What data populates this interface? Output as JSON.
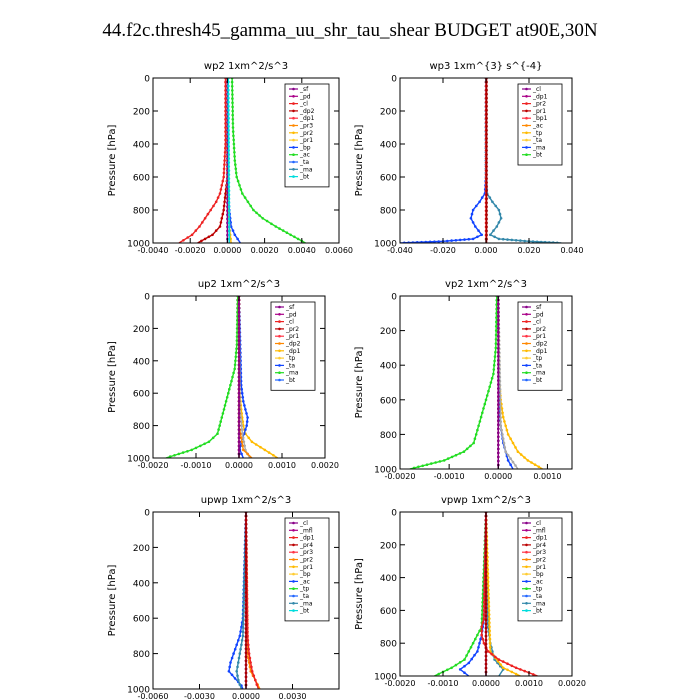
{
  "title": "44.f2c.thresh45_gamma_uu_shr_tau_shear  BUDGET at90E,30N",
  "chart_data": [
    {
      "type": "line",
      "id": "wp2",
      "title": "wp2   1xm^2/s^3",
      "xlabel": "",
      "ylabel": "Pressure  [hPa]",
      "xlim": [
        -0.004,
        0.006
      ],
      "ylim": [
        1000,
        0
      ],
      "y_inverted": true,
      "xticks": [
        -0.004,
        -0.002,
        0,
        0.002,
        0.004,
        0.006
      ],
      "xtick_labels": [
        "-0.0040",
        "-0.0020",
        "0.0000",
        "0.0020",
        "0.0040",
        "0.0060"
      ],
      "yticks": [
        0,
        200,
        400,
        600,
        800,
        1000
      ],
      "ytick_labels": [
        "0",
        "200",
        "400",
        "600",
        "800",
        "1000"
      ],
      "legend_position": "top-right",
      "grid": false,
      "legend": [
        "_sf",
        "_pd",
        "_cl",
        "_dp2",
        "_dp1",
        "_pr3",
        "_pr2",
        "_pr1",
        "_bp",
        "_ac",
        "_ta",
        "_ma",
        "_bt"
      ],
      "series": [
        {
          "name": "_pr1",
          "color": "#22dd22",
          "pressure": [
            0,
            300,
            500,
            600,
            700,
            800,
            850,
            900,
            950,
            1000
          ],
          "values": [
            0.00025,
            0.0003,
            0.0004,
            0.0005,
            0.0008,
            0.0014,
            0.0019,
            0.0026,
            0.0034,
            0.0042
          ]
        },
        {
          "name": "_dp1",
          "color": "#ee2222",
          "pressure": [
            0,
            400,
            600,
            700,
            750,
            800,
            850,
            900,
            950,
            1000
          ],
          "values": [
            -0.0001,
            -0.0001,
            -0.0002,
            -0.0004,
            -0.0006,
            -0.0009,
            -0.0012,
            -0.0015,
            -0.0019,
            -0.0026
          ]
        },
        {
          "name": "_dp2",
          "color": "#bb0000",
          "pressure": [
            0,
            600,
            700,
            800,
            900,
            950,
            1000
          ],
          "values": [
            0,
            0,
            -0.0001,
            -0.0002,
            -0.0004,
            -0.0008,
            -0.0016
          ]
        },
        {
          "name": "_bp",
          "color": "#1144ff",
          "pressure": [
            0,
            500,
            700,
            800,
            900,
            950,
            1000
          ],
          "values": [
            2e-05,
            3e-05,
            5e-05,
            0.0001,
            0.0002,
            0.0004,
            0.0007
          ]
        },
        {
          "name": "_pr2",
          "color": "#ffbb00",
          "pressure": [
            0,
            700,
            900,
            1000
          ],
          "values": [
            0,
            0,
            0.0001,
            0.0002
          ]
        },
        {
          "name": "_cl",
          "color": "#880088",
          "pressure": [
            0,
            1000
          ],
          "values": [
            0,
            0
          ]
        },
        {
          "name": "_bt",
          "color": "#00dddd",
          "pressure": [
            0,
            1000
          ],
          "values": [
            5e-05,
            0.0001
          ]
        }
      ]
    },
    {
      "type": "line",
      "id": "wp3",
      "title": "wp3   1xm^{3} s^{-4}",
      "xlabel": "",
      "ylabel": "Pressure  [hPa]",
      "xlim": [
        -0.04,
        0.04
      ],
      "ylim": [
        1000,
        0
      ],
      "y_inverted": true,
      "xticks": [
        -0.04,
        -0.02,
        0,
        0.02,
        0.04
      ],
      "xtick_labels": [
        "-0.040",
        "-0.020",
        "0.000",
        "0.020",
        "0.040"
      ],
      "yticks": [
        0,
        200,
        400,
        600,
        800,
        1000
      ],
      "ytick_labels": [
        "0",
        "200",
        "400",
        "600",
        "800",
        "1000"
      ],
      "legend_position": "top-right",
      "grid": false,
      "legend": [
        "_cl",
        "_dp1",
        "_pr2",
        "_pr1",
        "_bp1",
        "_ac",
        "_tp",
        "_ta",
        "_ma",
        "_bt"
      ],
      "series": [
        {
          "name": "_ta",
          "color": "#1144ff",
          "pressure": [
            0,
            600,
            700,
            750,
            800,
            850,
            900,
            950,
            975,
            990,
            1000
          ],
          "values": [
            0,
            0,
            -0.0005,
            -0.003,
            -0.006,
            -0.007,
            -0.005,
            -0.002,
            -0.006,
            -0.02,
            -0.04
          ]
        },
        {
          "name": "_ma",
          "color": "#3388aa",
          "pressure": [
            0,
            600,
            700,
            750,
            800,
            850,
            900,
            950,
            975,
            990,
            1000
          ],
          "values": [
            0,
            0,
            0.0005,
            0.003,
            0.006,
            0.007,
            0.005,
            0.002,
            0.006,
            0.02,
            0.035
          ]
        },
        {
          "name": "_dp1",
          "color": "#ee2222",
          "pressure": [
            0,
            1000
          ],
          "values": [
            0,
            0
          ]
        },
        {
          "name": "_cl",
          "color": "#aa0000",
          "pressure": [
            0,
            1000
          ],
          "values": [
            0.0003,
            0.0003
          ]
        }
      ]
    },
    {
      "type": "line",
      "id": "up2",
      "title": "up2   1xm^2/s^3",
      "xlabel": "",
      "ylabel": "Pressure  [hPa]",
      "xlim": [
        -0.002,
        0.002
      ],
      "ylim": [
        1000,
        0
      ],
      "y_inverted": true,
      "xticks": [
        -0.002,
        -0.001,
        0,
        0.001,
        0.002
      ],
      "xtick_labels": [
        "-0.0020",
        "-0.0010",
        "0.0000",
        "0.0010",
        "0.0020"
      ],
      "yticks": [
        0,
        200,
        400,
        600,
        800,
        1000
      ],
      "ytick_labels": [
        "0",
        "200",
        "400",
        "600",
        "800",
        "1000"
      ],
      "legend_position": "top-right",
      "grid": false,
      "legend": [
        "_sf",
        "_pd",
        "_cl",
        "_pr2",
        "_pr1",
        "_dp2",
        "_dp1",
        "_tp",
        "_ta",
        "_ma",
        "_bt"
      ],
      "series": [
        {
          "name": "_dp1",
          "color": "#22dd22",
          "pressure": [
            0,
            300,
            450,
            550,
            650,
            750,
            850,
            900,
            950,
            1000
          ],
          "values": [
            -3e-05,
            -5e-05,
            -0.0001,
            -0.0002,
            -0.0003,
            -0.0004,
            -0.0005,
            -0.0007,
            -0.0011,
            -0.0017
          ]
        },
        {
          "name": "_pr1",
          "color": "#ffbb00",
          "pressure": [
            0,
            600,
            700,
            800,
            850,
            900,
            950,
            1000
          ],
          "values": [
            0,
            2e-05,
            5e-05,
            0.0001,
            0.00015,
            0.0003,
            0.0006,
            0.0009
          ]
        },
        {
          "name": "_ta",
          "color": "#1144ff",
          "pressure": [
            0,
            550,
            650,
            700,
            750,
            800,
            850,
            900,
            950,
            1000
          ],
          "values": [
            0,
            5e-05,
            0.0001,
            0.00015,
            0.0002,
            0.00018,
            0.00012,
            5e-05,
            2e-05,
            0.0001
          ]
        },
        {
          "name": "_ma",
          "color": "#aaaaaa",
          "pressure": [
            0,
            700,
            850,
            950,
            1000
          ],
          "values": [
            0,
            2e-05,
            8e-05,
            0.00015,
            0.00025
          ]
        },
        {
          "name": "_pr2",
          "color": "#ff8800",
          "pressure": [
            0,
            800,
            950,
            1000
          ],
          "values": [
            0,
            0,
            0.0001,
            0.0003
          ]
        },
        {
          "name": "_cl",
          "color": "#aa0000",
          "pressure": [
            0,
            1000
          ],
          "values": [
            0,
            0
          ]
        },
        {
          "name": "_pd",
          "color": "#880088",
          "pressure": [
            0,
            1000
          ],
          "values": [
            0,
            0
          ]
        }
      ]
    },
    {
      "type": "line",
      "id": "vp2",
      "title": "vp2   1xm^2/s^3",
      "xlabel": "",
      "ylabel": "Pressure  [hPa]",
      "xlim": [
        -0.002,
        0.0015
      ],
      "ylim": [
        1000,
        0
      ],
      "y_inverted": true,
      "xticks": [
        -0.002,
        -0.001,
        0,
        0.001
      ],
      "xtick_labels": [
        "-0.0020",
        "-0.0010",
        "0.0000",
        "0.0010"
      ],
      "yticks": [
        0,
        200,
        400,
        600,
        800,
        1000
      ],
      "ytick_labels": [
        "0",
        "200",
        "400",
        "600",
        "800",
        "1000"
      ],
      "legend_position": "top-right",
      "grid": false,
      "legend": [
        "_sf",
        "_pd",
        "_cl",
        "_pr2",
        "_pr1",
        "_dp2",
        "_dp1",
        "_tp",
        "_ta",
        "_ma",
        "_bt"
      ],
      "series": [
        {
          "name": "_dp1",
          "color": "#22dd22",
          "pressure": [
            0,
            300,
            450,
            550,
            650,
            750,
            850,
            900,
            950,
            1000
          ],
          "values": [
            -3e-05,
            -5e-05,
            -0.0001,
            -0.0002,
            -0.0003,
            -0.0004,
            -0.0005,
            -0.0007,
            -0.0011,
            -0.0018
          ]
        },
        {
          "name": "_pr1",
          "color": "#ffbb00",
          "pressure": [
            0,
            500,
            600,
            700,
            800,
            850,
            900,
            950,
            1000
          ],
          "values": [
            0,
            2e-05,
            5e-05,
            0.0001,
            0.0002,
            0.0003,
            0.0004,
            0.0006,
            0.0009
          ]
        },
        {
          "name": "_ta",
          "color": "#1144ff",
          "pressure": [
            0,
            650,
            750,
            850,
            950,
            1000
          ],
          "values": [
            0,
            2e-05,
            5e-05,
            0.0001,
            0.0002,
            0.0003
          ]
        },
        {
          "name": "_ma",
          "color": "#aaaaaa",
          "pressure": [
            0,
            750,
            900,
            1000
          ],
          "values": [
            0,
            5e-05,
            0.00015,
            0.0004
          ]
        },
        {
          "name": "_cl",
          "color": "#aa0000",
          "pressure": [
            0,
            1000
          ],
          "values": [
            0,
            0
          ]
        },
        {
          "name": "_pd",
          "color": "#880088",
          "pressure": [
            0,
            1000
          ],
          "values": [
            0,
            0
          ]
        }
      ]
    },
    {
      "type": "line",
      "id": "upwp",
      "title": "upwp   1xm^2/s^3",
      "xlabel": "",
      "ylabel": "Pressure  [hPa]",
      "xlim": [
        -0.006,
        0.006
      ],
      "ylim": [
        1000,
        0
      ],
      "y_inverted": true,
      "xticks": [
        -0.006,
        -0.003,
        0,
        0.003
      ],
      "xtick_labels": [
        "-0.0060",
        "-0.0030",
        "0.0000",
        "0.0030"
      ],
      "yticks": [
        0,
        200,
        400,
        600,
        800,
        1000
      ],
      "ytick_labels": [
        "0",
        "200",
        "400",
        "600",
        "800",
        "1000"
      ],
      "legend_position": "top-right",
      "grid": false,
      "legend": [
        "_cl",
        "_mfl",
        "_dp1",
        "_pr4",
        "_pr3",
        "_pr2",
        "_pr1",
        "_bp",
        "_ac",
        "_tp",
        "_ta",
        "_ma",
        "_bt"
      ],
      "series": [
        {
          "name": "_ta",
          "color": "#1144ff",
          "pressure": [
            0,
            600,
            700,
            800,
            850,
            900,
            940,
            980,
            1000
          ],
          "values": [
            0,
            -0.0002,
            -0.0004,
            -0.0008,
            -0.001,
            -0.0011,
            -0.0007,
            -0.0003,
            -0.0002
          ]
        },
        {
          "name": "_ma",
          "color": "#3388aa",
          "pressure": [
            0,
            700,
            800,
            900,
            950,
            1000
          ],
          "values": [
            0,
            -0.0002,
            -0.0004,
            -0.0006,
            -0.0005,
            -0.0003
          ]
        },
        {
          "name": "_pr1",
          "color": "#ff8800",
          "pressure": [
            0,
            800,
            900,
            950,
            1000
          ],
          "values": [
            0,
            0.0001,
            0.0003,
            0.0006,
            0.0009
          ]
        },
        {
          "name": "_dp1",
          "color": "#ee2222",
          "pressure": [
            0,
            700,
            800,
            900,
            950,
            1000
          ],
          "values": [
            0,
            0.0001,
            0.0002,
            0.0004,
            0.0006,
            0.0008
          ]
        },
        {
          "name": "_mfl",
          "color": "#880088",
          "pressure": [
            0,
            1000
          ],
          "values": [
            0,
            0
          ]
        },
        {
          "name": "_cl",
          "color": "#aa0000",
          "pressure": [
            0,
            1000
          ],
          "values": [
            0,
            0
          ]
        }
      ]
    },
    {
      "type": "line",
      "id": "vpwp",
      "title": "vpwp   1xm^2/s^3",
      "xlabel": "",
      "ylabel": "Pressure  [hPa]",
      "xlim": [
        -0.002,
        0.002
      ],
      "ylim": [
        1000,
        0
      ],
      "y_inverted": true,
      "xticks": [
        -0.002,
        -0.001,
        0,
        0.001,
        0.002
      ],
      "xtick_labels": [
        "-0.0020",
        "-0.0010",
        "0.0000",
        "0.0010",
        "0.0020"
      ],
      "yticks": [
        0,
        200,
        400,
        600,
        800,
        1000
      ],
      "ytick_labels": [
        "0",
        "200",
        "400",
        "600",
        "800",
        "1000"
      ],
      "legend_position": "top-right",
      "grid": false,
      "legend": [
        "_cl",
        "_mfl",
        "_dp1",
        "_pr4",
        "_pr3",
        "_pr2",
        "_pr1",
        "_bp",
        "_ac",
        "_tp",
        "_ta",
        "_ma",
        "_bt"
      ],
      "series": [
        {
          "name": "_ac",
          "color": "#22dd22",
          "pressure": [
            0,
            700,
            800,
            900,
            950,
            1000
          ],
          "values": [
            0,
            -0.0001,
            -0.0003,
            -0.0005,
            -0.0008,
            -0.0012
          ]
        },
        {
          "name": "_tp",
          "color": "#1144ff",
          "pressure": [
            0,
            650,
            750,
            850,
            920,
            960,
            1000
          ],
          "values": [
            0,
            -5e-05,
            -0.0001,
            -0.0002,
            -0.0004,
            -0.0006,
            -0.0004
          ]
        },
        {
          "name": "_ta",
          "color": "#3388aa",
          "pressure": [
            0,
            700,
            800,
            900,
            960,
            1000
          ],
          "values": [
            0,
            5e-05,
            0.0001,
            0.0002,
            0.0004,
            0.0003
          ]
        },
        {
          "name": "_pr2",
          "color": "#ffbb00",
          "pressure": [
            0,
            850,
            950,
            1000
          ],
          "values": [
            0,
            0.0001,
            0.0004,
            0.0008
          ]
        },
        {
          "name": "_dp1",
          "color": "#ee2222",
          "pressure": [
            0,
            650,
            700,
            750,
            800,
            850,
            900,
            950,
            1000
          ],
          "values": [
            0,
            -5e-05,
            -0.0001,
            -0.0001,
            -5e-05,
            5e-05,
            0.0003,
            0.0007,
            0.0012
          ]
        },
        {
          "name": "_mfl",
          "color": "#880088",
          "pressure": [
            0,
            1000
          ],
          "values": [
            0,
            0
          ]
        },
        {
          "name": "_cl",
          "color": "#aa0000",
          "pressure": [
            0,
            1000
          ],
          "values": [
            0,
            0
          ]
        }
      ]
    }
  ]
}
